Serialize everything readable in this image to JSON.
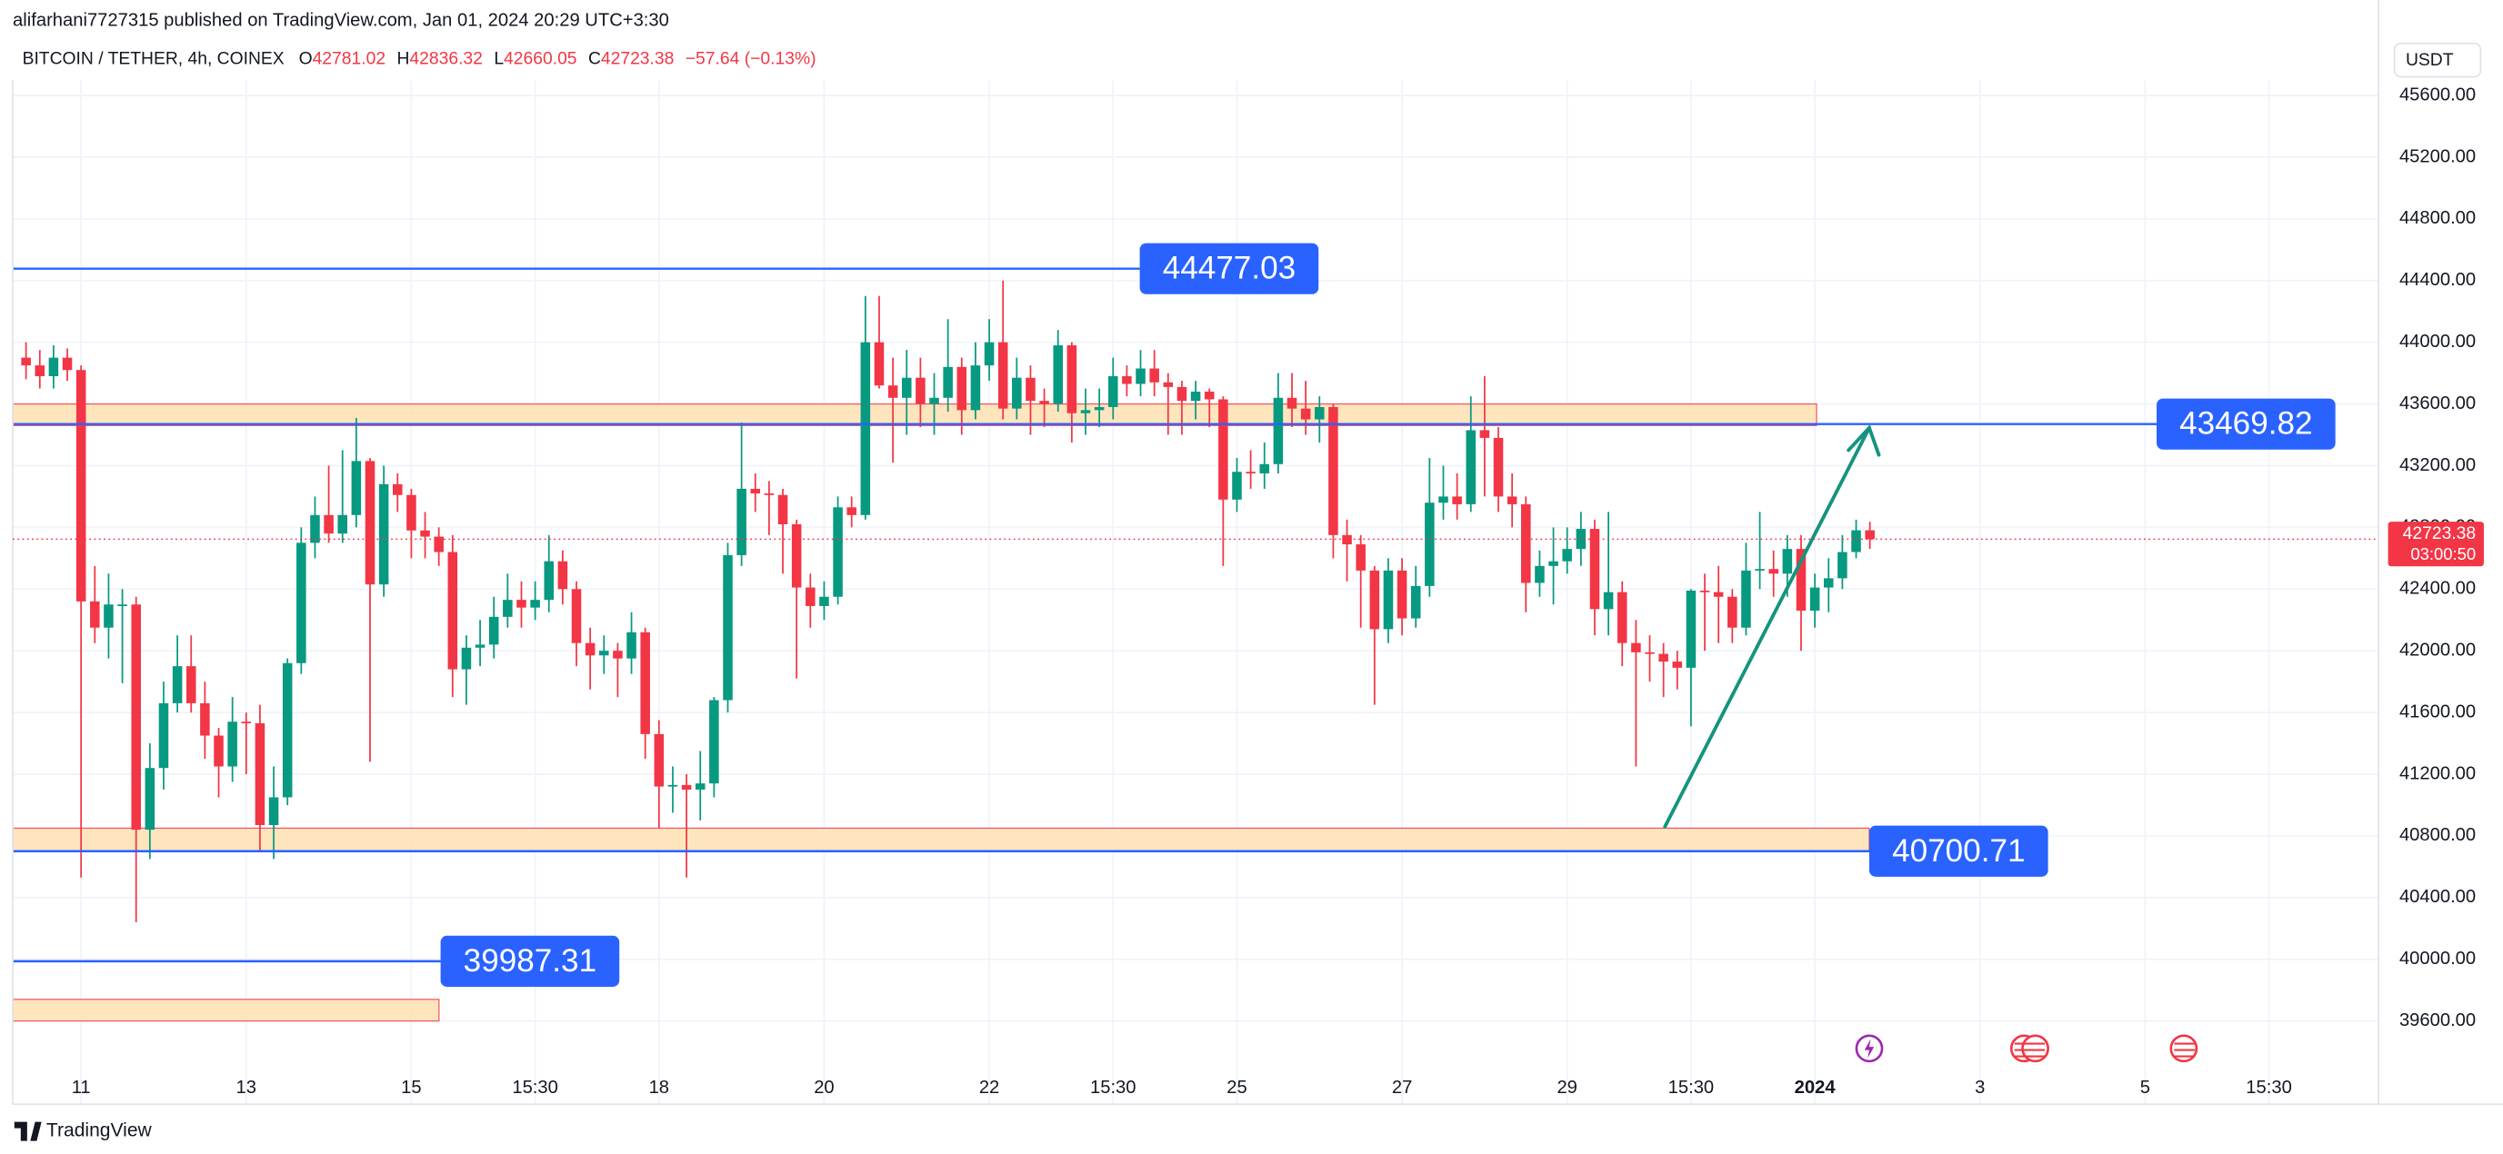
{
  "chart_data": {
    "type": "candlestick",
    "publisher": "alifarhani7727315 published on TradingView.com, Jan 01, 2024 20:29 UTC+3:30",
    "title": "BITCOIN / TETHER, 4h, COINEX",
    "ohlc_keys": [
      "O",
      "H",
      "L",
      "C"
    ],
    "change": "−57.64 (−0.13%)",
    "currency": "USDT",
    "countdown": "03:00:50",
    "brand": "TradingView",
    "up_color": "#089981",
    "down_color": "#f23645",
    "level_color": "#2962ff",
    "zone_color": "#ffe0b2",
    "grid": true,
    "ylim": [
      39060,
      45700
    ],
    "yticks": [
      {
        "value": 39600,
        "label": "39600.00"
      },
      {
        "value": 40000,
        "label": "40000.00"
      },
      {
        "value": 40400,
        "label": "40400.00"
      },
      {
        "value": 40800,
        "label": "40800.00"
      },
      {
        "value": 41200,
        "label": "41200.00"
      },
      {
        "value": 41600,
        "label": "41600.00"
      },
      {
        "value": 42000,
        "label": "42000.00"
      },
      {
        "value": 42400,
        "label": "42400.00"
      },
      {
        "value": 42800,
        "label": "42800.00"
      },
      {
        "value": 43200,
        "label": "43200.00"
      },
      {
        "value": 43600,
        "label": "43600.00"
      },
      {
        "value": 44000,
        "label": "44000.00"
      },
      {
        "value": 44400,
        "label": "44400.00"
      },
      {
        "value": 44800,
        "label": "44800.00"
      },
      {
        "value": 45200,
        "label": "45200.00"
      },
      {
        "value": 45600,
        "label": "45600.00"
      }
    ],
    "levels": [
      44477.03,
      43469.82,
      40700.71,
      39987.31
    ],
    "zones": [
      {
        "low": 43460,
        "high": 43600
      },
      {
        "low": 40700,
        "high": 40850
      },
      {
        "low": 39600,
        "high": 39740
      }
    ],
    "categories": [
      null,
      null,
      null,
      null,
      "11",
      null,
      null,
      null,
      null,
      null,
      null,
      null,
      null,
      null,
      null,
      null,
      "13",
      null,
      null,
      null,
      null,
      null,
      null,
      null,
      null,
      null,
      null,
      null,
      "15",
      null,
      null,
      null,
      null,
      null,
      null,
      null,
      null,
      "15:30",
      null,
      null,
      null,
      null,
      null,
      null,
      null,
      null,
      "18",
      null,
      null,
      null,
      null,
      null,
      null,
      null,
      null,
      null,
      null,
      null,
      "20",
      null,
      null,
      null,
      null,
      null,
      null,
      null,
      null,
      null,
      null,
      null,
      "22",
      null,
      null,
      null,
      null,
      null,
      null,
      null,
      null,
      "15:30",
      null,
      null,
      null,
      null,
      null,
      null,
      null,
      null,
      "25",
      null,
      null,
      null,
      null,
      null,
      null,
      null,
      null,
      null,
      null,
      null,
      "27",
      null,
      null,
      null,
      null,
      null,
      null,
      null,
      null,
      null,
      null,
      null,
      "29",
      null,
      null,
      null,
      null,
      null,
      null,
      null,
      null,
      "15:30",
      null,
      null,
      null,
      null,
      null,
      null,
      null,
      null,
      "2024",
      null,
      null,
      null,
      null,
      null,
      null,
      null,
      null,
      null,
      null,
      null,
      "3",
      null,
      null,
      null,
      null,
      null,
      null,
      null,
      null,
      null,
      null,
      null,
      "5",
      null,
      null,
      null,
      null,
      null,
      null,
      null,
      null,
      "15:30",
      null,
      null,
      null,
      null,
      null,
      null,
      null
    ],
    "open": [
      43900,
      43850,
      43780,
      43900,
      43820,
      42320,
      42150,
      42300,
      42300,
      40840,
      41240,
      41660,
      41900,
      41660,
      41450,
      41250,
      41540,
      41530,
      40870,
      41050,
      41920,
      42700,
      42880,
      42760,
      42880,
      43230,
      42430,
      43080,
      43010,
      42780,
      42740,
      42640,
      41880,
      42020,
      42040,
      42220,
      42330,
      42280,
      42330,
      42580,
      42400,
      42050,
      41970,
      42000,
      41950,
      42120,
      41460,
      41120,
      41130,
      41100,
      41140,
      41680,
      42620,
      43050,
      43020,
      43010,
      42820,
      42410,
      42290,
      42350,
      42930,
      42880,
      44000,
      43720,
      43640,
      43770,
      43600,
      43640,
      43840,
      43560,
      43850,
      44000,
      43570,
      43770,
      43620,
      43600,
      43980,
      43540,
      43560,
      43580,
      43780,
      43730,
      43830,
      43740,
      43710,
      43620,
      43680,
      43630,
      42980,
      43160,
      43150,
      43210,
      43640,
      43570,
      43500,
      43580,
      42750,
      42690,
      42520,
      42140,
      42520,
      42210,
      42420,
      42960,
      43000,
      42950,
      43430,
      43380,
      43000,
      42950,
      42440,
      42550,
      42580,
      42660,
      42790,
      42270,
      42380,
      42050,
      41990,
      41980,
      41930,
      41890,
      42390,
      42380,
      42350,
      42150,
      42520,
      42530,
      42500,
      42660,
      42260,
      42410,
      42470,
      42640,
      42781.02,
      null,
      null,
      null,
      null,
      null,
      null,
      null,
      null,
      null,
      null,
      null,
      null,
      null,
      null,
      null,
      null,
      null,
      null,
      null,
      null,
      null,
      null,
      null,
      null,
      null,
      null,
      null,
      null,
      null,
      null,
      null,
      null,
      null,
      null,
      null,
      null
    ],
    "high": [
      44000,
      43950,
      43980,
      43960,
      43850,
      42550,
      42500,
      42400,
      42350,
      41400,
      41800,
      42100,
      42100,
      41800,
      41500,
      41700,
      41600,
      41650,
      41250,
      41950,
      42800,
      43000,
      43200,
      43300,
      43510,
      43250,
      43200,
      43150,
      43050,
      42900,
      42800,
      42750,
      42100,
      42200,
      42350,
      42500,
      42450,
      42450,
      42750,
      42650,
      42450,
      42150,
      42100,
      42050,
      42250,
      42150,
      41550,
      41250,
      41200,
      41350,
      41700,
      42700,
      43480,
      43150,
      43100,
      43050,
      42850,
      42500,
      42450,
      43000,
      43000,
      44300,
      44300,
      43900,
      43950,
      43900,
      43800,
      44150,
      43900,
      44000,
      44150,
      44400,
      43900,
      43850,
      43700,
      44080,
      44000,
      43700,
      43700,
      43900,
      43850,
      43950,
      43950,
      43800,
      43750,
      43750,
      43700,
      43650,
      43250,
      43300,
      43350,
      43800,
      43800,
      43750,
      43650,
      43600,
      42850,
      42750,
      42550,
      42600,
      42600,
      42550,
      43250,
      43200,
      43150,
      43650,
      43780,
      43450,
      43150,
      43000,
      42650,
      42800,
      42800,
      42900,
      42850,
      42900,
      42450,
      42200,
      42100,
      42050,
      42000,
      42400,
      42500,
      42550,
      42400,
      42700,
      42900,
      42650,
      42750,
      42750,
      42500,
      42600,
      42750,
      42850,
      42836.32,
      null,
      null,
      null,
      null,
      null,
      null,
      null,
      null,
      null,
      null,
      null,
      null,
      null,
      null,
      null,
      null,
      null,
      null,
      null,
      null,
      null,
      null,
      null,
      null,
      null,
      null,
      null,
      null,
      null,
      null,
      null,
      null,
      null,
      null,
      null,
      null
    ],
    "low": [
      43760,
      43700,
      43700,
      43750,
      40530,
      42050,
      41950,
      41790,
      40240,
      40650,
      41100,
      41600,
      41600,
      41300,
      41050,
      41150,
      41200,
      40700,
      40650,
      41000,
      41850,
      42600,
      42700,
      42700,
      42800,
      41280,
      42350,
      42900,
      42600,
      42600,
      42550,
      41700,
      41650,
      41900,
      41950,
      42150,
      42150,
      42200,
      42250,
      42300,
      41900,
      41750,
      41850,
      41700,
      41850,
      41300,
      40850,
      40950,
      40530,
      40900,
      41050,
      41600,
      42550,
      42900,
      42750,
      42500,
      41820,
      42150,
      42200,
      42300,
      42800,
      42850,
      43700,
      43220,
      43400,
      43450,
      43400,
      43550,
      43400,
      43500,
      43750,
      43500,
      43500,
      43400,
      43450,
      43550,
      43350,
      43400,
      43450,
      43500,
      43650,
      43650,
      43650,
      43400,
      43400,
      43500,
      43450,
      42550,
      42900,
      43050,
      43050,
      43150,
      43450,
      43400,
      43350,
      42600,
      42450,
      42150,
      41650,
      42050,
      42100,
      42150,
      42350,
      42850,
      42850,
      42900,
      43000,
      42900,
      42800,
      42250,
      42350,
      42300,
      42500,
      42550,
      42100,
      42100,
      41900,
      41250,
      41800,
      41700,
      41750,
      41510,
      42000,
      42050,
      42050,
      42100,
      42400,
      42350,
      42350,
      42000,
      42150,
      42250,
      42400,
      42600,
      42660.05,
      null,
      null,
      null,
      null,
      null,
      null,
      null,
      null,
      null,
      null,
      null,
      null,
      null,
      null,
      null,
      null,
      null,
      null,
      null,
      null,
      null,
      null,
      null,
      null,
      null,
      null,
      null,
      null,
      null,
      null,
      null,
      null,
      null,
      null,
      null,
      null
    ],
    "close": [
      43850,
      43780,
      43900,
      43820,
      42320,
      42150,
      42300,
      42300,
      40840,
      41240,
      41660,
      41900,
      41660,
      41450,
      41250,
      41540,
      41530,
      40870,
      41050,
      41920,
      42700,
      42880,
      42760,
      42880,
      43230,
      42430,
      43080,
      43010,
      42780,
      42740,
      42640,
      41880,
      42020,
      42040,
      42220,
      42330,
      42280,
      42330,
      42580,
      42400,
      42050,
      41970,
      42000,
      41950,
      42120,
      41460,
      41120,
      41130,
      41100,
      41140,
      41680,
      42620,
      43050,
      43020,
      43010,
      42820,
      42410,
      42290,
      42350,
      42930,
      42880,
      44000,
      43720,
      43640,
      43770,
      43600,
      43640,
      43840,
      43560,
      43850,
      44000,
      43570,
      43770,
      43620,
      43600,
      43980,
      43540,
      43560,
      43580,
      43780,
      43730,
      43830,
      43740,
      43710,
      43620,
      43680,
      43630,
      42980,
      43160,
      43150,
      43210,
      43640,
      43570,
      43500,
      43580,
      42750,
      42690,
      42520,
      42140,
      42520,
      42210,
      42420,
      42960,
      43000,
      42950,
      43430,
      43380,
      43000,
      42950,
      42440,
      42550,
      42580,
      42660,
      42790,
      42270,
      42380,
      42050,
      41990,
      41980,
      41930,
      41890,
      42390,
      42380,
      42350,
      42150,
      42520,
      42530,
      42500,
      42660,
      42260,
      42410,
      42470,
      42640,
      42781.02,
      42723.38,
      null,
      null,
      null,
      null,
      null,
      null,
      null,
      null,
      null,
      null,
      null,
      null,
      null,
      null,
      null,
      null,
      null,
      null,
      null,
      null,
      null,
      null,
      null,
      null,
      null,
      null,
      null,
      null,
      null,
      null,
      null,
      null,
      null,
      null,
      null,
      null
    ]
  }
}
